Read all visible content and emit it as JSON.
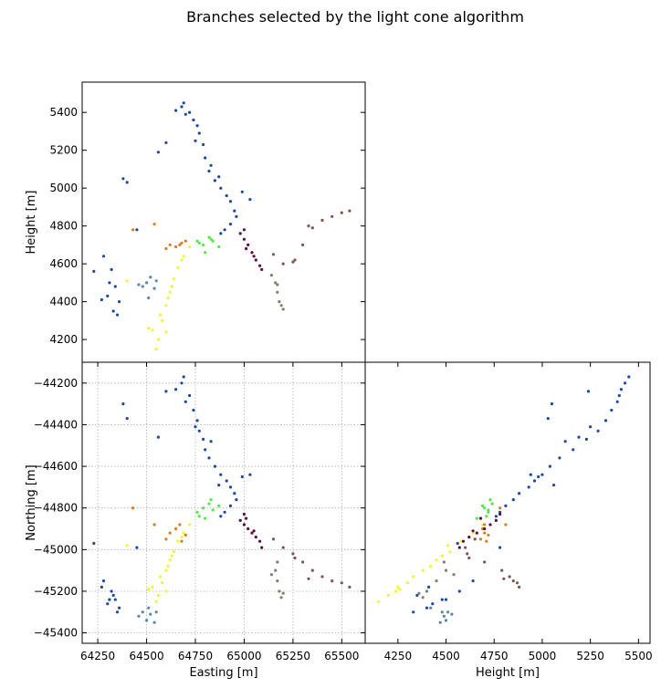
{
  "figure": {
    "title": "Branches selected by the light cone algorithm"
  },
  "colors": {
    "blue": "#1e4a9c",
    "steel": "#5a86ad",
    "yellow": "#eef53a",
    "orange": "#d9801e",
    "green": "#55e84a",
    "maroon": "#5a1040",
    "mauve": "#7c5553",
    "olive": "#7c8270",
    "grid": "#b0b0b0"
  },
  "chart_data": [
    {
      "panel": "top-left",
      "type": "scatter",
      "xlabel": "",
      "ylabel": "Height [m]",
      "xlim": [
        64170,
        65620
      ],
      "ylim": [
        4080,
        5560
      ],
      "xticks": [],
      "yticks": [
        4200,
        4400,
        4600,
        4800,
        5000,
        5200,
        5400
      ],
      "grid": false,
      "x_field": "easting",
      "y_field": "height"
    },
    {
      "panel": "bottom-left",
      "type": "scatter",
      "xlabel": "Easting [m]",
      "ylabel": "Northing [m]",
      "xlim": [
        64170,
        65620
      ],
      "ylim": [
        -45450,
        -44100
      ],
      "xticks": [
        64250,
        64500,
        64750,
        65000,
        65250,
        65500
      ],
      "yticks": [
        -45400,
        -45200,
        -45000,
        -44800,
        -44600,
        -44400,
        -44200
      ],
      "grid": true,
      "x_field": "easting",
      "y_field": "northing"
    },
    {
      "panel": "bottom-right",
      "type": "scatter",
      "xlabel": "Height [m]",
      "ylabel": "",
      "xlim": [
        4080,
        5560
      ],
      "ylim": [
        -45450,
        -44100
      ],
      "xticks": [
        4250,
        4500,
        4750,
        5000,
        5250,
        5500
      ],
      "yticks": [],
      "grid": false,
      "x_field": "height",
      "y_field": "northing"
    }
  ],
  "branches": [
    {
      "color": "blue",
      "points": [
        [
          64690,
          -44170,
          5450
        ],
        [
          64680,
          -44200,
          5430
        ],
        [
          64650,
          -44230,
          5410
        ],
        [
          64720,
          -44260,
          5400
        ],
        [
          64700,
          -44290,
          5390
        ],
        [
          64740,
          -44330,
          5360
        ],
        [
          64760,
          -44380,
          5330
        ],
        [
          64770,
          -44430,
          5290
        ],
        [
          64790,
          -44470,
          5230
        ],
        [
          64800,
          -44520,
          5160
        ],
        [
          64820,
          -44560,
          5090
        ],
        [
          64850,
          -44600,
          5040
        ],
        [
          64880,
          -44640,
          5000
        ],
        [
          64910,
          -44670,
          4960
        ],
        [
          64930,
          -44700,
          4930
        ],
        [
          64950,
          -44730,
          4880
        ],
        [
          64960,
          -44760,
          4850
        ],
        [
          64930,
          -44790,
          4810
        ],
        [
          64900,
          -44820,
          4780
        ],
        [
          64880,
          -44840,
          4760
        ],
        [
          64990,
          -44650,
          4980
        ],
        [
          65030,
          -44640,
          4940
        ],
        [
          64870,
          -44690,
          5060
        ],
        [
          64830,
          -44480,
          5120
        ],
        [
          64750,
          -44410,
          5250
        ],
        [
          64600,
          -44240,
          5240
        ],
        [
          64560,
          -44460,
          5190
        ],
        [
          64380,
          -44300,
          5050
        ],
        [
          64400,
          -44370,
          5030
        ],
        [
          64450,
          -44990,
          4780
        ],
        [
          64230,
          -44970,
          4560
        ],
        [
          64280,
          -45150,
          4640
        ],
        [
          64320,
          -45200,
          4570
        ],
        [
          64340,
          -45240,
          4480
        ],
        [
          64360,
          -45280,
          4400
        ],
        [
          64300,
          -45260,
          4430
        ],
        [
          64330,
          -45220,
          4350
        ],
        [
          64270,
          -45180,
          4410
        ],
        [
          64350,
          -45300,
          4330
        ],
        [
          64310,
          -45240,
          4500
        ]
      ]
    },
    {
      "color": "steel",
      "points": [
        [
          64480,
          -45300,
          4480
        ],
        [
          64500,
          -45340,
          4500
        ],
        [
          64520,
          -45310,
          4530
        ],
        [
          64540,
          -45350,
          4470
        ],
        [
          64510,
          -45280,
          4420
        ],
        [
          64460,
          -45320,
          4490
        ],
        [
          64550,
          -45300,
          4510
        ]
      ]
    },
    {
      "color": "yellow",
      "points": [
        [
          64530,
          -45180,
          4250
        ],
        [
          64560,
          -45220,
          4200
        ],
        [
          64580,
          -45160,
          4300
        ],
        [
          64600,
          -45100,
          4380
        ],
        [
          64620,
          -45050,
          4450
        ],
        [
          64640,
          -45010,
          4520
        ],
        [
          64660,
          -44960,
          4580
        ],
        [
          64690,
          -44920,
          4640
        ],
        [
          64720,
          -44880,
          4690
        ],
        [
          64550,
          -45250,
          4150
        ],
        [
          64510,
          -45190,
          4260
        ],
        [
          64570,
          -45130,
          4330
        ],
        [
          64610,
          -45080,
          4420
        ],
        [
          64630,
          -45030,
          4480
        ],
        [
          64600,
          -45200,
          4240
        ],
        [
          64400,
          -44980,
          4510
        ],
        [
          64680,
          -44940,
          4620
        ]
      ]
    },
    {
      "color": "orange",
      "points": [
        [
          64620,
          -44920,
          4700
        ],
        [
          64650,
          -44900,
          4690
        ],
        [
          64680,
          -44960,
          4710
        ],
        [
          64600,
          -44950,
          4680
        ],
        [
          64700,
          -44930,
          4720
        ],
        [
          64670,
          -44880,
          4700
        ],
        [
          64430,
          -44800,
          4780
        ],
        [
          64540,
          -44880,
          4810
        ]
      ]
    },
    {
      "color": "green",
      "points": [
        [
          64760,
          -44820,
          4720
        ],
        [
          64790,
          -44800,
          4700
        ],
        [
          64820,
          -44780,
          4740
        ],
        [
          64840,
          -44810,
          4720
        ],
        [
          64870,
          -44790,
          4690
        ],
        [
          64800,
          -44850,
          4660
        ],
        [
          64770,
          -44840,
          4710
        ],
        [
          64830,
          -44760,
          4730
        ]
      ]
    },
    {
      "color": "maroon",
      "points": [
        [
          64980,
          -44860,
          4760
        ],
        [
          65000,
          -44880,
          4730
        ],
        [
          65020,
          -44900,
          4700
        ],
        [
          65040,
          -44920,
          4660
        ],
        [
          65060,
          -44940,
          4620
        ],
        [
          65080,
          -44960,
          4590
        ],
        [
          65010,
          -44850,
          4680
        ],
        [
          65000,
          -44830,
          4780
        ],
        [
          65050,
          -44910,
          4640
        ],
        [
          65090,
          -44990,
          4570
        ]
      ]
    },
    {
      "color": "mauve",
      "points": [
        [
          65150,
          -44950,
          4650
        ],
        [
          65200,
          -44990,
          4600
        ],
        [
          65250,
          -45020,
          4610
        ],
        [
          65300,
          -45060,
          4700
        ],
        [
          65350,
          -45100,
          4790
        ],
        [
          65400,
          -45130,
          4830
        ],
        [
          65450,
          -45150,
          4850
        ],
        [
          65500,
          -45160,
          4870
        ],
        [
          65540,
          -45180,
          4880
        ],
        [
          65260,
          -45040,
          4620
        ],
        [
          65330,
          -45140,
          4800
        ]
      ]
    },
    {
      "color": "olive",
      "points": [
        [
          65160,
          -45100,
          4500
        ],
        [
          65170,
          -45150,
          4450
        ],
        [
          65180,
          -45200,
          4400
        ],
        [
          65190,
          -45230,
          4380
        ],
        [
          65200,
          -45210,
          4360
        ],
        [
          65140,
          -45120,
          4540
        ],
        [
          65170,
          -45060,
          4490
        ]
      ]
    }
  ]
}
